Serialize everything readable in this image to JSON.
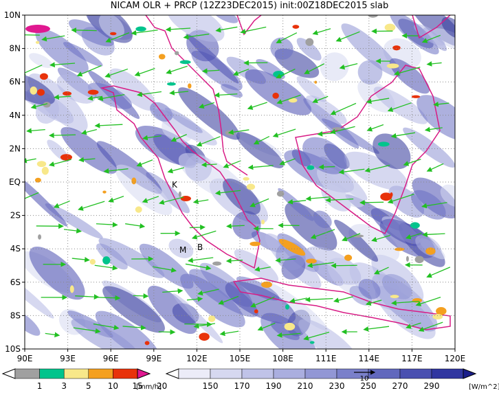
{
  "title": "NICAM OLR + PRCP (12Z23DEC2015) init:00Z18DEC2015 slab",
  "x_axis_labels": [
    "90E",
    "93E",
    "96E",
    "99E",
    "102E",
    "105E",
    "108E",
    "111E",
    "114E",
    "117E",
    "120E"
  ],
  "y_axis_labels": [
    "10N",
    "8N",
    "6N",
    "4N",
    "2N",
    "EQ",
    "2S",
    "4S",
    "6S",
    "8S",
    "10S"
  ],
  "place_labels": [
    "K",
    "M",
    "B"
  ],
  "precip_colorbar": {
    "labels": [
      1,
      3,
      5,
      10,
      15,
      20
    ],
    "unit": "[mm/h]"
  },
  "olr_colorbar": {
    "labels": [
      150,
      170,
      190,
      210,
      230,
      250,
      270,
      290
    ],
    "unit": "[W/m^2]"
  },
  "reference_vector_label": "10"
}
